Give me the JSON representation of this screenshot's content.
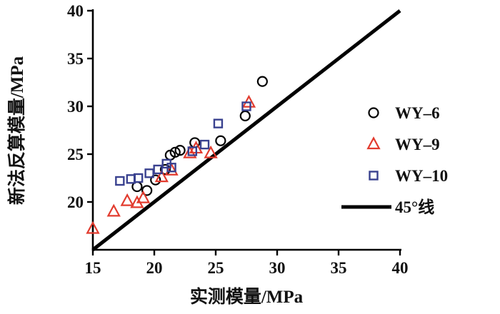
{
  "chart_data": {
    "type": "scatter",
    "title": "",
    "xlabel": "实测模量/MPa",
    "ylabel": "新法反算模量/MPa",
    "xlim": [
      15,
      40
    ],
    "ylim": [
      15,
      40
    ],
    "xticks": [
      15,
      20,
      25,
      30,
      35,
      40
    ],
    "yticks": [
      20,
      25,
      30,
      35,
      40
    ],
    "grid": false,
    "legend_position": "right",
    "series": [
      {
        "name": "WY–6",
        "marker": "circle",
        "color": "#000000",
        "points": [
          [
            18.6,
            21.6
          ],
          [
            19.4,
            21.2
          ],
          [
            20.1,
            22.3
          ],
          [
            20.9,
            23.4
          ],
          [
            21.3,
            24.9
          ],
          [
            21.7,
            25.2
          ],
          [
            22.1,
            25.4
          ],
          [
            23.3,
            26.2
          ],
          [
            25.4,
            26.4
          ],
          [
            27.4,
            29.0
          ],
          [
            28.8,
            32.6
          ]
        ]
      },
      {
        "name": "WY–9",
        "marker": "triangle",
        "color": "#e23b2e",
        "points": [
          [
            15.0,
            17.2
          ],
          [
            16.7,
            19.0
          ],
          [
            17.8,
            20.1
          ],
          [
            18.6,
            19.9
          ],
          [
            19.1,
            20.4
          ],
          [
            20.6,
            22.6
          ],
          [
            21.4,
            23.3
          ],
          [
            22.9,
            25.1
          ],
          [
            23.4,
            25.6
          ],
          [
            24.6,
            25.1
          ],
          [
            27.7,
            30.4
          ]
        ]
      },
      {
        "name": "WY–10",
        "marker": "square",
        "color": "#39418f",
        "points": [
          [
            17.2,
            22.2
          ],
          [
            18.1,
            22.4
          ],
          [
            18.7,
            22.5
          ],
          [
            19.6,
            23.0
          ],
          [
            20.3,
            23.4
          ],
          [
            21.0,
            24.0
          ],
          [
            21.4,
            23.6
          ],
          [
            23.1,
            25.3
          ],
          [
            24.1,
            26.0
          ],
          [
            25.2,
            28.2
          ],
          [
            27.5,
            30.0
          ]
        ]
      }
    ],
    "reference_line": {
      "name": "45°线",
      "from": [
        15,
        15
      ],
      "to": [
        40,
        40
      ],
      "color": "#000000",
      "stroke_width": 5
    }
  }
}
